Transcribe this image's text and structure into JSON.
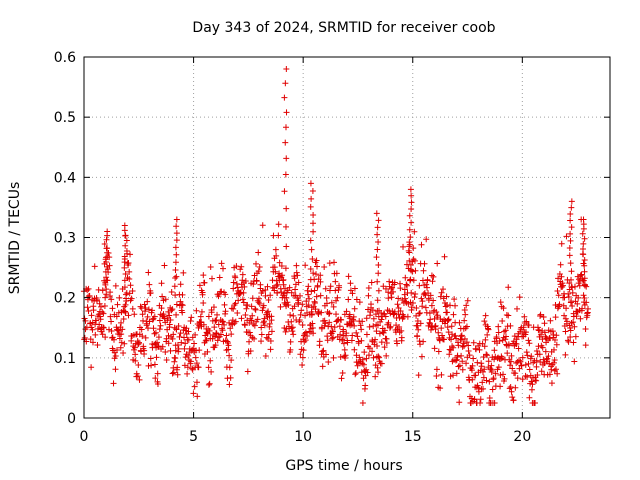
{
  "chart_data": {
    "type": "scatter",
    "title": "Day 343 of 2024, SRMTID for receiver coob",
    "xlabel": "GPS time / hours",
    "ylabel": "SRMTID / TECUs",
    "xlim": [
      0,
      24
    ],
    "ylim": [
      0,
      0.6
    ],
    "x_ticks": [
      0,
      5,
      10,
      15,
      20
    ],
    "x_tick_labels": [
      "0",
      "5",
      "10",
      "15",
      "20"
    ],
    "y_ticks": [
      0,
      0.1,
      0.2,
      0.3,
      0.4,
      0.5,
      0.6
    ],
    "y_tick_labels": [
      "0",
      "0.1",
      "0.2",
      "0.3",
      "0.4",
      "0.5",
      "0.6"
    ],
    "grid": true,
    "marker": "+",
    "series_color": "#e00000",
    "x_range_data": [
      0,
      23
    ],
    "profile": [
      [
        0.0,
        0.15
      ],
      [
        0.5,
        0.18
      ],
      [
        1.0,
        0.2
      ],
      [
        1.5,
        0.14
      ],
      [
        2.0,
        0.2
      ],
      [
        2.5,
        0.13
      ],
      [
        3.0,
        0.14
      ],
      [
        3.5,
        0.15
      ],
      [
        4.0,
        0.16
      ],
      [
        4.5,
        0.13
      ],
      [
        5.0,
        0.12
      ],
      [
        5.5,
        0.15
      ],
      [
        6.0,
        0.17
      ],
      [
        6.5,
        0.14
      ],
      [
        7.0,
        0.19
      ],
      [
        7.5,
        0.2
      ],
      [
        8.0,
        0.18
      ],
      [
        8.5,
        0.2
      ],
      [
        9.0,
        0.22
      ],
      [
        9.5,
        0.17
      ],
      [
        10.0,
        0.16
      ],
      [
        10.5,
        0.19
      ],
      [
        11.0,
        0.16
      ],
      [
        11.5,
        0.17
      ],
      [
        12.0,
        0.14
      ],
      [
        12.5,
        0.12
      ],
      [
        13.0,
        0.13
      ],
      [
        13.5,
        0.16
      ],
      [
        14.0,
        0.16
      ],
      [
        14.5,
        0.2
      ],
      [
        15.0,
        0.21
      ],
      [
        15.5,
        0.19
      ],
      [
        16.0,
        0.16
      ],
      [
        16.5,
        0.15
      ],
      [
        17.0,
        0.13
      ],
      [
        17.5,
        0.09
      ],
      [
        18.0,
        0.08
      ],
      [
        18.5,
        0.09
      ],
      [
        19.0,
        0.1
      ],
      [
        19.5,
        0.1
      ],
      [
        20.0,
        0.12
      ],
      [
        20.5,
        0.09
      ],
      [
        21.0,
        0.11
      ],
      [
        21.5,
        0.14
      ],
      [
        22.0,
        0.2
      ],
      [
        22.5,
        0.18
      ],
      [
        23.0,
        0.22
      ]
    ],
    "spikes": [
      {
        "x": 9.2,
        "max": 0.58
      },
      {
        "x": 10.4,
        "max": 0.39
      },
      {
        "x": 14.9,
        "max": 0.38
      },
      {
        "x": 13.4,
        "max": 0.34
      },
      {
        "x": 4.2,
        "max": 0.33
      },
      {
        "x": 22.2,
        "max": 0.36
      },
      {
        "x": 22.8,
        "max": 0.33
      },
      {
        "x": 1.0,
        "max": 0.31
      },
      {
        "x": 1.9,
        "max": 0.32
      }
    ]
  }
}
